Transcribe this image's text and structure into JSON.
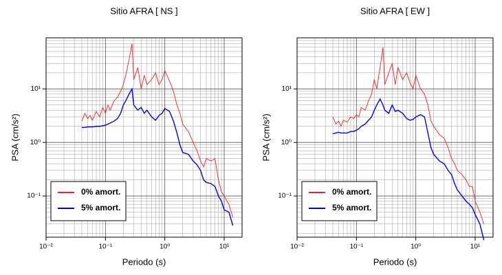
{
  "chart_data": [
    {
      "type": "line",
      "title": "Sitio AFRA [ NS ]",
      "xlabel": "Periodo (s)",
      "ylabel": "PSA (cm/s²)",
      "x": [
        0.04,
        0.045,
        0.05,
        0.055,
        0.06,
        0.07,
        0.08,
        0.09,
        0.1,
        0.11,
        0.12,
        0.14,
        0.16,
        0.18,
        0.2,
        0.22,
        0.25,
        0.28,
        0.3,
        0.35,
        0.4,
        0.45,
        0.5,
        0.6,
        0.7,
        0.8,
        0.9,
        1.0,
        1.2,
        1.4,
        1.6,
        1.8,
        2,
        2.5,
        3,
        3.5,
        4,
        4.5,
        5,
        6,
        7,
        8,
        9,
        10,
        12,
        14
      ],
      "series": [
        {
          "name": "0% amort.",
          "color": "#ee2020",
          "values": [
            2.5,
            3.5,
            2.8,
            3.2,
            2.6,
            3.8,
            3.0,
            4.5,
            3.5,
            5,
            4,
            6,
            7,
            9,
            12,
            18,
            35,
            70,
            15,
            25,
            10,
            18,
            12,
            15,
            20,
            12,
            15,
            22,
            14,
            9,
            5,
            3.5,
            2.2,
            1.6,
            1.0,
            0.7,
            0.45,
            0.35,
            0.5,
            0.45,
            0.5,
            0.2,
            0.12,
            0.1,
            0.07,
            0.04
          ]
        },
        {
          "name": "5% amort.",
          "color": "#0000dd",
          "values": [
            1.9,
            1.9,
            1.95,
            1.95,
            1.95,
            2.0,
            2.0,
            2.05,
            2.1,
            2.2,
            2.3,
            2.5,
            2.8,
            3.5,
            5,
            6,
            8,
            10,
            5,
            4,
            4.5,
            3.5,
            4,
            3,
            2.6,
            3.2,
            3.5,
            4.3,
            3.8,
            2.5,
            1.5,
            0.9,
            0.65,
            0.6,
            0.45,
            0.38,
            0.3,
            0.2,
            0.18,
            0.17,
            0.15,
            0.1,
            0.08,
            0.055,
            0.05,
            0.028
          ]
        }
      ],
      "xlim": [
        0.01,
        20
      ],
      "ylim": [
        0.017,
        90
      ],
      "xscale": "log",
      "yscale": "log",
      "xticks": [
        {
          "value": 0.01,
          "label": "10⁻²"
        },
        {
          "value": 0.1,
          "label": "10⁻¹"
        },
        {
          "value": 1,
          "label": "10⁰"
        },
        {
          "value": 10,
          "label": "10¹"
        }
      ],
      "yticks": [
        {
          "value": 0.1,
          "label": "10⁻¹"
        },
        {
          "value": 1,
          "label": "10⁰"
        },
        {
          "value": 10,
          "label": "10¹"
        }
      ],
      "xminor": [
        0.02,
        0.03,
        0.04,
        0.05,
        0.06,
        0.07,
        0.08,
        0.09,
        0.2,
        0.3,
        0.4,
        0.5,
        0.6,
        0.7,
        0.8,
        0.9,
        2,
        3,
        4,
        5,
        6,
        7,
        8,
        9
      ],
      "yminor": [
        0.02,
        0.03,
        0.04,
        0.05,
        0.06,
        0.07,
        0.08,
        0.09,
        0.2,
        0.3,
        0.4,
        0.5,
        0.6,
        0.7,
        0.8,
        0.9,
        2,
        3,
        4,
        5,
        6,
        7,
        8,
        9,
        20,
        30,
        40,
        50,
        60,
        70,
        80,
        90
      ],
      "grid": true,
      "legend": "lower left"
    },
    {
      "type": "line",
      "title": "Sitio AFRA [ EW ]",
      "xlabel": "Periodo (s)",
      "ylabel": "PSA (cm/s²)",
      "x": [
        0.04,
        0.045,
        0.05,
        0.055,
        0.06,
        0.07,
        0.08,
        0.09,
        0.1,
        0.11,
        0.12,
        0.14,
        0.16,
        0.18,
        0.2,
        0.22,
        0.25,
        0.28,
        0.3,
        0.35,
        0.4,
        0.45,
        0.5,
        0.6,
        0.7,
        0.8,
        0.9,
        1.0,
        1.2,
        1.4,
        1.6,
        1.8,
        2,
        2.5,
        3,
        3.5,
        4,
        4.5,
        5,
        6,
        7,
        8,
        9,
        10,
        12,
        14
      ],
      "series": [
        {
          "name": "0% amort.",
          "color": "#ee2020",
          "values": [
            3,
            2.2,
            2.5,
            2.0,
            2.6,
            2.4,
            3.0,
            2.8,
            3.3,
            3.0,
            4.5,
            4,
            6,
            8,
            15,
            10,
            25,
            60,
            12,
            20,
            30,
            12,
            25,
            15,
            20,
            13,
            10,
            18,
            10,
            8,
            5,
            2.5,
            2.0,
            1.4,
            1.2,
            0.8,
            0.5,
            0.4,
            0.3,
            0.25,
            0.2,
            0.15,
            0.15,
            0.08,
            0.05,
            0.03
          ]
        },
        {
          "name": "5% amort.",
          "color": "#0000dd",
          "values": [
            1.45,
            1.5,
            1.55,
            1.5,
            1.5,
            1.5,
            1.6,
            1.6,
            1.7,
            1.8,
            2.0,
            2.2,
            2.6,
            3.0,
            4,
            5,
            6.5,
            5,
            4,
            3.5,
            5,
            3.8,
            4,
            3.5,
            2.8,
            2.6,
            2.7,
            3.0,
            3.3,
            3.0,
            1.5,
            0.8,
            0.6,
            0.45,
            0.4,
            0.3,
            0.25,
            0.17,
            0.13,
            0.1,
            0.08,
            0.07,
            0.06,
            0.045,
            0.03,
            0.015
          ]
        }
      ],
      "xlim": [
        0.01,
        20
      ],
      "ylim": [
        0.017,
        90
      ],
      "xscale": "log",
      "yscale": "log",
      "xticks": [
        {
          "value": 0.01,
          "label": "10⁻²"
        },
        {
          "value": 0.1,
          "label": "10⁻¹"
        },
        {
          "value": 1,
          "label": "10⁰"
        },
        {
          "value": 10,
          "label": "10¹"
        }
      ],
      "yticks": [
        {
          "value": 0.1,
          "label": "10⁻¹"
        },
        {
          "value": 1,
          "label": "10⁰"
        },
        {
          "value": 10,
          "label": "10¹"
        }
      ],
      "xminor": [
        0.02,
        0.03,
        0.04,
        0.05,
        0.06,
        0.07,
        0.08,
        0.09,
        0.2,
        0.3,
        0.4,
        0.5,
        0.6,
        0.7,
        0.8,
        0.9,
        2,
        3,
        4,
        5,
        6,
        7,
        8,
        9
      ],
      "yminor": [
        0.02,
        0.03,
        0.04,
        0.05,
        0.06,
        0.07,
        0.08,
        0.09,
        0.2,
        0.3,
        0.4,
        0.5,
        0.6,
        0.7,
        0.8,
        0.9,
        2,
        3,
        4,
        5,
        6,
        7,
        8,
        9,
        20,
        30,
        40,
        50,
        60,
        70,
        80,
        90
      ],
      "grid": true,
      "legend": "lower left"
    }
  ]
}
